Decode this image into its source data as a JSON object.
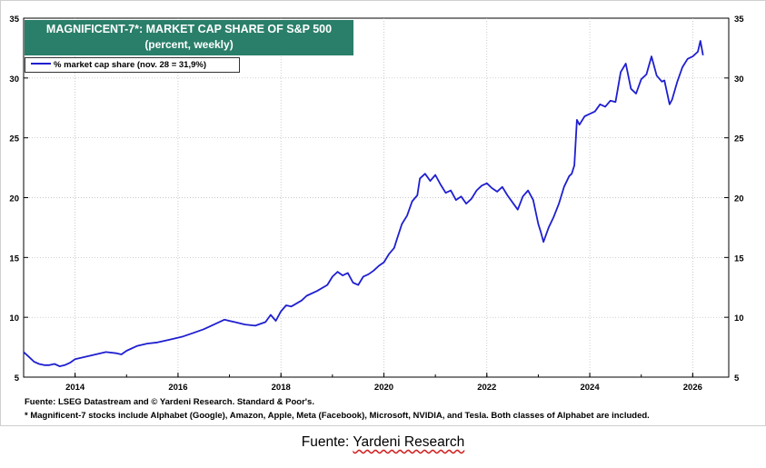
{
  "chart_data": {
    "type": "line",
    "title": "MAGNIFICENT-7*: MARKET CAP SHARE OF S&P 500",
    "subtitle": "(percent, weekly)",
    "xlabel": "",
    "ylabel": "",
    "xlim": [
      2013.0,
      2026.7
    ],
    "ylim": [
      5,
      35
    ],
    "x_ticks": [
      "2014",
      "2016",
      "2018",
      "2020",
      "2022",
      "2024",
      "2026"
    ],
    "y_ticks": [
      "5",
      "10",
      "15",
      "20",
      "25",
      "30",
      "35"
    ],
    "grid": true,
    "legend_position": "top-left",
    "series": [
      {
        "name": "% market cap share (nov. 28 = 31,9%)",
        "color": "#1f1fd0",
        "points": [
          [
            2013.0,
            7.1
          ],
          [
            2013.1,
            6.7
          ],
          [
            2013.2,
            6.3
          ],
          [
            2013.3,
            6.1
          ],
          [
            2013.4,
            6.0
          ],
          [
            2013.5,
            6.0
          ],
          [
            2013.6,
            6.1
          ],
          [
            2013.7,
            5.9
          ],
          [
            2013.8,
            6.0
          ],
          [
            2013.9,
            6.2
          ],
          [
            2014.0,
            6.5
          ],
          [
            2014.2,
            6.7
          ],
          [
            2014.4,
            6.9
          ],
          [
            2014.6,
            7.1
          ],
          [
            2014.8,
            7.0
          ],
          [
            2014.9,
            6.9
          ],
          [
            2015.0,
            7.2
          ],
          [
            2015.2,
            7.6
          ],
          [
            2015.4,
            7.8
          ],
          [
            2015.6,
            7.9
          ],
          [
            2015.8,
            8.1
          ],
          [
            2016.0,
            8.3
          ],
          [
            2016.1,
            8.4
          ],
          [
            2016.3,
            8.7
          ],
          [
            2016.5,
            9.0
          ],
          [
            2016.7,
            9.4
          ],
          [
            2016.9,
            9.8
          ],
          [
            2017.0,
            9.7
          ],
          [
            2017.1,
            9.6
          ],
          [
            2017.3,
            9.4
          ],
          [
            2017.5,
            9.3
          ],
          [
            2017.7,
            9.6
          ],
          [
            2017.8,
            10.2
          ],
          [
            2017.9,
            9.7
          ],
          [
            2018.0,
            10.5
          ],
          [
            2018.1,
            11.0
          ],
          [
            2018.2,
            10.9
          ],
          [
            2018.4,
            11.4
          ],
          [
            2018.5,
            11.8
          ],
          [
            2018.7,
            12.2
          ],
          [
            2018.9,
            12.7
          ],
          [
            2019.0,
            13.4
          ],
          [
            2019.1,
            13.8
          ],
          [
            2019.2,
            13.5
          ],
          [
            2019.3,
            13.7
          ],
          [
            2019.4,
            12.9
          ],
          [
            2019.5,
            12.7
          ],
          [
            2019.6,
            13.4
          ],
          [
            2019.7,
            13.6
          ],
          [
            2019.8,
            13.9
          ],
          [
            2019.9,
            14.3
          ],
          [
            2020.0,
            14.6
          ],
          [
            2020.1,
            15.3
          ],
          [
            2020.2,
            15.8
          ],
          [
            2020.25,
            16.5
          ],
          [
            2020.35,
            17.8
          ],
          [
            2020.45,
            18.5
          ],
          [
            2020.55,
            19.7
          ],
          [
            2020.65,
            20.2
          ],
          [
            2020.7,
            21.6
          ],
          [
            2020.8,
            22.0
          ],
          [
            2020.9,
            21.4
          ],
          [
            2021.0,
            21.9
          ],
          [
            2021.1,
            21.1
          ],
          [
            2021.2,
            20.4
          ],
          [
            2021.3,
            20.6
          ],
          [
            2021.4,
            19.8
          ],
          [
            2021.5,
            20.1
          ],
          [
            2021.6,
            19.5
          ],
          [
            2021.7,
            19.9
          ],
          [
            2021.8,
            20.6
          ],
          [
            2021.9,
            21.0
          ],
          [
            2022.0,
            21.2
          ],
          [
            2022.1,
            20.8
          ],
          [
            2022.2,
            20.5
          ],
          [
            2022.3,
            20.9
          ],
          [
            2022.4,
            20.2
          ],
          [
            2022.5,
            19.6
          ],
          [
            2022.6,
            19.0
          ],
          [
            2022.7,
            20.1
          ],
          [
            2022.8,
            20.6
          ],
          [
            2022.9,
            19.8
          ],
          [
            2023.0,
            17.8
          ],
          [
            2023.05,
            17.1
          ],
          [
            2023.1,
            16.3
          ],
          [
            2023.2,
            17.5
          ],
          [
            2023.3,
            18.4
          ],
          [
            2023.4,
            19.5
          ],
          [
            2023.5,
            20.9
          ],
          [
            2023.6,
            21.8
          ],
          [
            2023.65,
            22.0
          ],
          [
            2023.7,
            22.7
          ],
          [
            2023.75,
            26.5
          ],
          [
            2023.8,
            26.1
          ],
          [
            2023.9,
            26.8
          ],
          [
            2024.0,
            27.0
          ],
          [
            2024.1,
            27.2
          ],
          [
            2024.2,
            27.8
          ],
          [
            2024.3,
            27.6
          ],
          [
            2024.4,
            28.1
          ],
          [
            2024.5,
            28.0
          ],
          [
            2024.6,
            30.5
          ],
          [
            2024.7,
            31.2
          ],
          [
            2024.8,
            29.1
          ],
          [
            2024.9,
            28.7
          ],
          [
            2025.0,
            29.9
          ],
          [
            2025.1,
            30.3
          ],
          [
            2025.2,
            31.8
          ],
          [
            2025.3,
            30.2
          ],
          [
            2025.4,
            29.7
          ],
          [
            2025.45,
            29.8
          ],
          [
            2025.55,
            27.8
          ],
          [
            2025.6,
            28.2
          ],
          [
            2025.7,
            29.7
          ],
          [
            2025.8,
            30.9
          ],
          [
            2025.9,
            31.6
          ],
          [
            2026.0,
            31.8
          ],
          [
            2026.1,
            32.2
          ],
          [
            2026.15,
            33.1
          ],
          [
            2026.2,
            31.9
          ]
        ]
      }
    ],
    "footnotes": [
      "Fuente: LSEG Datastream and © Yardeni Research. Standard & Poor's.",
      "* Magnificent-7 stocks include Alphabet (Google), Amazon, Apple, Meta (Facebook), Microsoft, NVIDIA, and Tesla. Both classes of Alphabet are included."
    ]
  },
  "caption": {
    "prefix": "Fuente: ",
    "link": "Yardeni Research"
  }
}
